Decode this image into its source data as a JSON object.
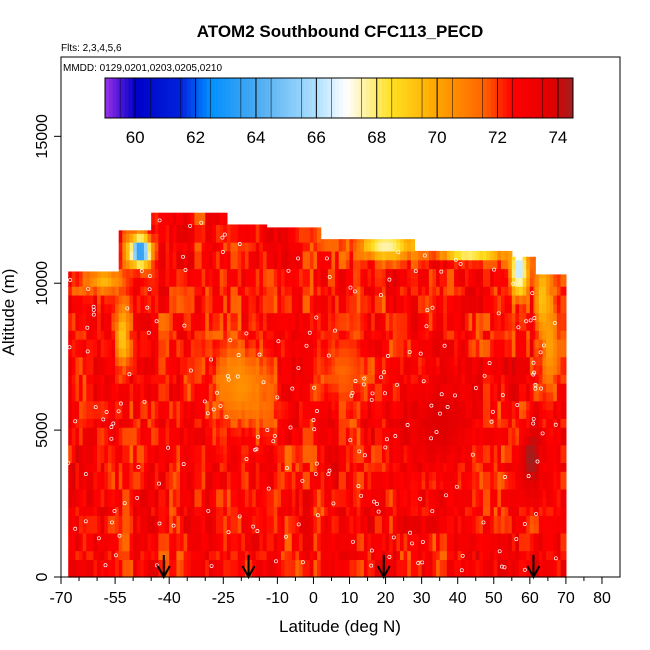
{
  "chart_data": {
    "type": "heatmap",
    "title": "ATOM2 Southbound CFC113_PECD",
    "subtitle_flights": "Flts: 2,3,4,5,6",
    "subtitle_dates": "MMDD: 0129,0201,0203,0205,0210",
    "xlabel": "Latitude (deg N)",
    "ylabel": "Altitude (m)",
    "xlim": [
      -70,
      85
    ],
    "ylim": [
      0,
      17700
    ],
    "x_ticks": [
      -70,
      -55,
      -40,
      -25,
      -10,
      0,
      10,
      20,
      30,
      40,
      50,
      60,
      70,
      80
    ],
    "x_tick_labels": [
      "-70",
      "-55",
      "-40",
      "-25",
      "-10",
      "0",
      "10",
      "20",
      "30",
      "40",
      "50",
      "60",
      "70",
      "80"
    ],
    "y_ticks": [
      0,
      5000,
      10000,
      15000
    ],
    "y_tick_labels": [
      "0",
      "5000",
      "10000",
      "15000"
    ],
    "colorbar": {
      "min": 59,
      "max": 74.5,
      "ticks": [
        60,
        62,
        64,
        66,
        68,
        70,
        72,
        74
      ],
      "tick_labels": [
        "60",
        "62",
        "64",
        "66",
        "68",
        "70",
        "72",
        "74"
      ],
      "stops": [
        {
          "v": 59.0,
          "c": "#9a30e8"
        },
        {
          "v": 60.0,
          "c": "#0000c8"
        },
        {
          "v": 61.5,
          "c": "#0022dd"
        },
        {
          "v": 62.5,
          "c": "#0090ff"
        },
        {
          "v": 64.0,
          "c": "#4aaaf0"
        },
        {
          "v": 66.0,
          "c": "#aee0ff"
        },
        {
          "v": 67.0,
          "c": "#ffffff"
        },
        {
          "v": 68.5,
          "c": "#ffe020"
        },
        {
          "v": 70.0,
          "c": "#ffa500"
        },
        {
          "v": 71.5,
          "c": "#ff6600"
        },
        {
          "v": 72.5,
          "c": "#ff0000"
        },
        {
          "v": 73.8,
          "c": "#e00000"
        },
        {
          "v": 74.5,
          "c": "#a02020"
        }
      ]
    },
    "arrow_latitudes": [
      -41.5,
      -18,
      19.5,
      61
    ],
    "columns": [
      {
        "lat0": -68,
        "lat1": -54,
        "top": 10400
      },
      {
        "lat0": -54,
        "lat1": -45,
        "top": 11800
      },
      {
        "lat0": -45,
        "lat1": -24,
        "top": 12400
      },
      {
        "lat0": -24,
        "lat1": -13,
        "top": 12000
      },
      {
        "lat0": -13,
        "lat1": 2,
        "top": 11900
      },
      {
        "lat0": 2,
        "lat1": 28,
        "top": 11500
      },
      {
        "lat0": 28,
        "lat1": 55,
        "top": 11100
      },
      {
        "lat0": 55,
        "lat1": 61.5,
        "top": 10900
      },
      {
        "lat0": 61.5,
        "lat1": 70,
        "top": 10300
      }
    ],
    "features": [
      {
        "lat": -48,
        "alt": 11100,
        "v": 62.5,
        "rx": 3,
        "ry": 500
      },
      {
        "lat": -58,
        "alt": 10100,
        "v": 69.5,
        "rx": 5,
        "ry": 450
      },
      {
        "lat": -53,
        "alt": 8200,
        "v": 69.0,
        "rx": 2,
        "ry": 1100
      },
      {
        "lat": 20,
        "alt": 11300,
        "v": 67.5,
        "rx": 8,
        "ry": 500
      },
      {
        "lat": 43,
        "alt": 11300,
        "v": 62.5,
        "rx": 9,
        "ry": 400
      },
      {
        "lat": 57,
        "alt": 10500,
        "v": 66.0,
        "rx": 2.5,
        "ry": 900
      },
      {
        "lat": 63.5,
        "alt": 9500,
        "v": 69.0,
        "rx": 2,
        "ry": 1500
      },
      {
        "lat": 65.5,
        "alt": 8000,
        "v": 70.0,
        "rx": 2,
        "ry": 1800
      },
      {
        "lat": 60.5,
        "alt": 4000,
        "v": 74.5,
        "rx": 3,
        "ry": 1200
      },
      {
        "lat": -20,
        "alt": 6500,
        "v": 70.5,
        "rx": 9,
        "ry": 1500
      },
      {
        "lat": 8,
        "alt": 7000,
        "v": 71.5,
        "rx": 7,
        "ry": 1200
      },
      {
        "lat": 35,
        "alt": 5200,
        "v": 73.8,
        "rx": 8,
        "ry": 1600
      }
    ]
  }
}
